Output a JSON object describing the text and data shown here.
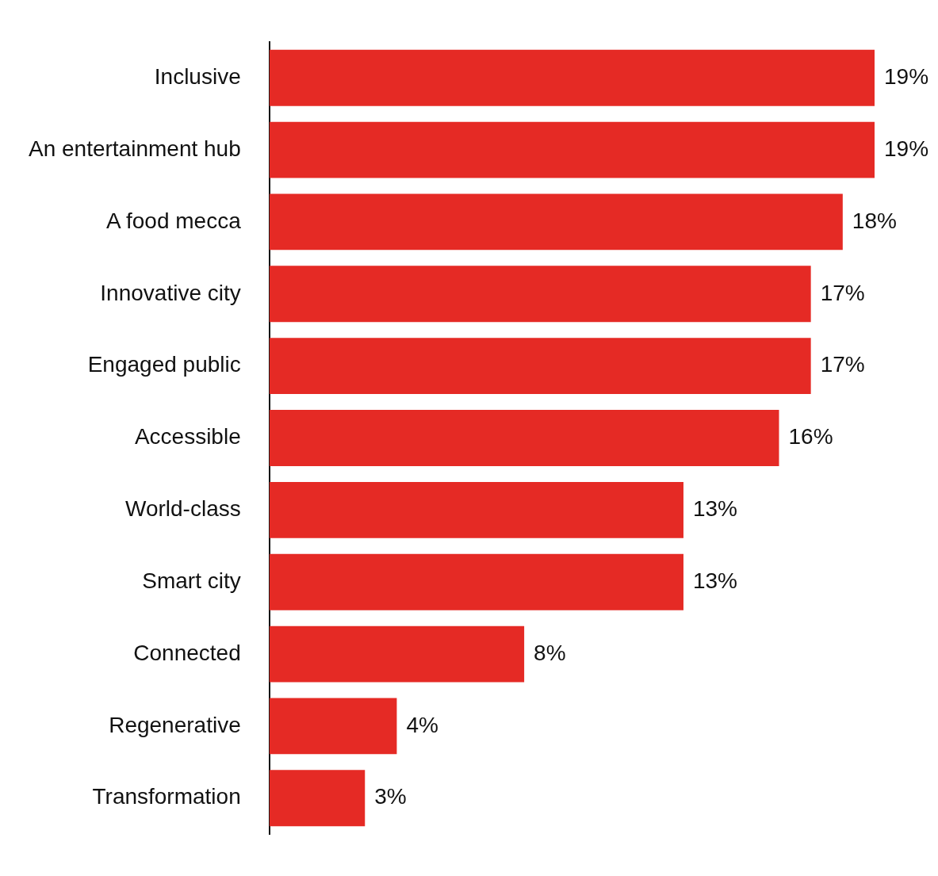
{
  "chart_data": {
    "type": "bar",
    "orientation": "horizontal",
    "categories": [
      "Inclusive",
      "An entertainment hub",
      "A food mecca",
      "Innovative city",
      "Engaged public",
      "Accessible",
      "World-class",
      "Smart city",
      "Connected",
      "Regenerative",
      "Transformation"
    ],
    "values": [
      19,
      19,
      18,
      17,
      17,
      16,
      13,
      13,
      8,
      4,
      3
    ],
    "value_labels": [
      "19%",
      "19%",
      "18%",
      "17%",
      "17%",
      "16%",
      "13%",
      "13%",
      "8%",
      "4%",
      "3%"
    ],
    "color": "#e52a25",
    "grid": false,
    "legend": false,
    "tick_labels": "y"
  }
}
